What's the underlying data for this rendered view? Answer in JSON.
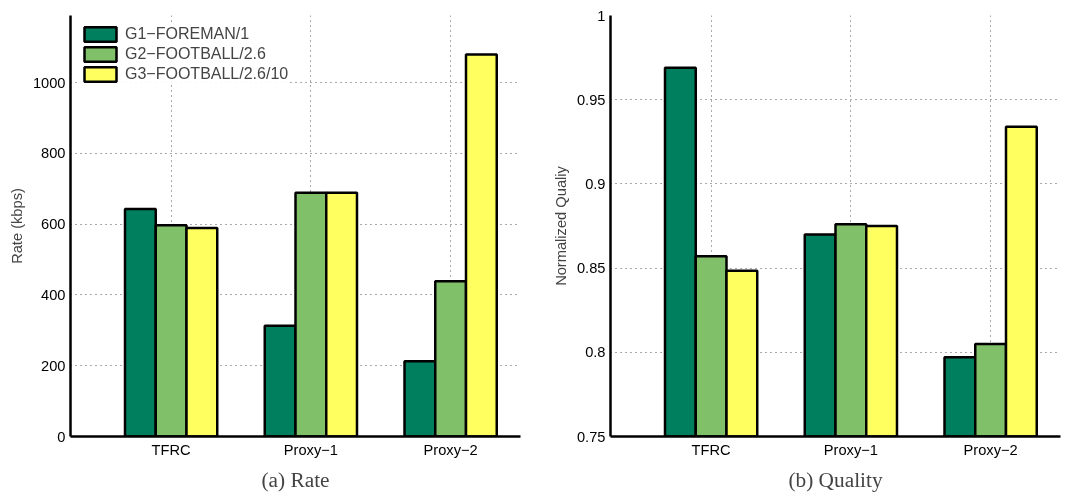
{
  "chart_data": [
    {
      "type": "bar",
      "title": "(a) Rate",
      "ylabel": "Rate (kbps)",
      "categories": [
        "TFRC",
        "Proxy−1",
        "Proxy−2"
      ],
      "series": [
        {
          "name": "G1−FOREMAN/1",
          "color": "#007f5f",
          "values": [
            643,
            313,
            213
          ]
        },
        {
          "name": "G2−FOOTBALL/2.6",
          "color": "#80c068",
          "values": [
            597,
            689,
            439
          ]
        },
        {
          "name": "G3−FOOTBALL/2.6/10",
          "color": "#ffff60",
          "values": [
            589,
            689,
            1080
          ]
        }
      ],
      "ylim": [
        0,
        1190
      ],
      "yticks": [
        0,
        200,
        400,
        600,
        800,
        1000
      ],
      "grid": true,
      "legend": "top left"
    },
    {
      "type": "bar",
      "title": "(b) Quality",
      "ylabel": "Normalized Qualiy",
      "categories": [
        "TFRC",
        "Proxy−1",
        "Proxy−2"
      ],
      "series": [
        {
          "color": "#007f5f",
          "values": [
            0.969,
            0.87,
            0.797
          ]
        },
        {
          "color": "#80c068",
          "values": [
            0.857,
            0.876,
            0.805
          ]
        },
        {
          "color": "#ffff60",
          "values": [
            0.8485,
            0.875,
            0.934
          ]
        }
      ],
      "ylim": [
        0.75,
        1.0
      ],
      "yticks": [
        0.75,
        0.8,
        0.85,
        0.9,
        0.95,
        1
      ],
      "grid": true,
      "legend": false
    }
  ]
}
